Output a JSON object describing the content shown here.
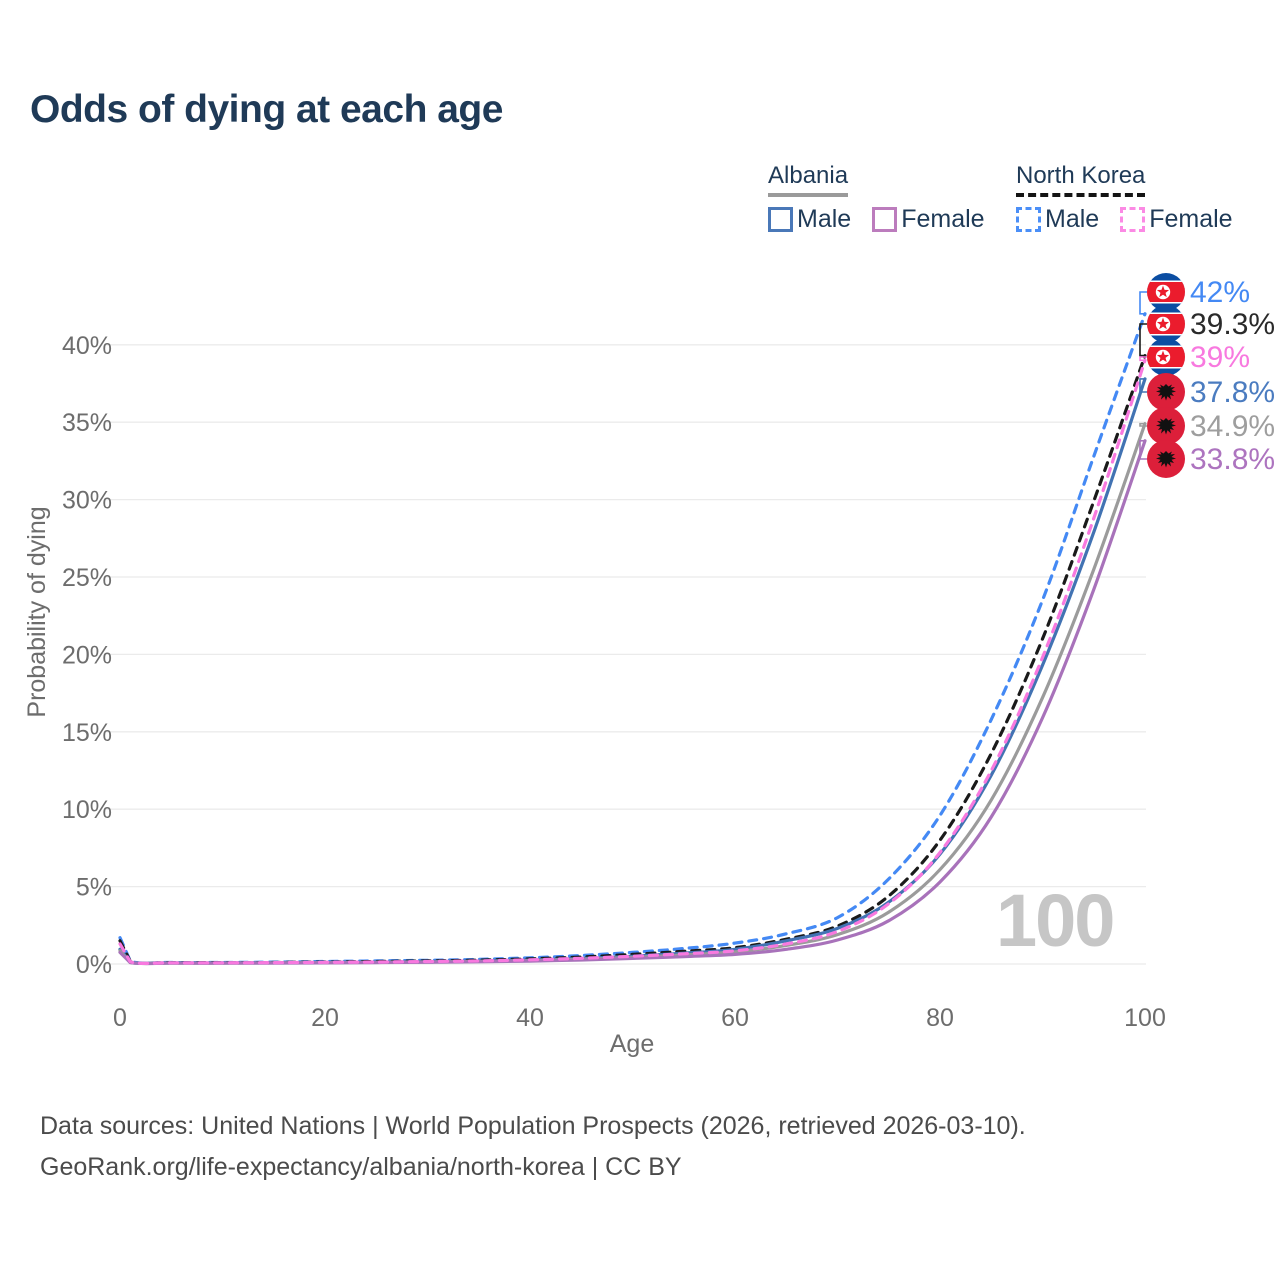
{
  "legend": {
    "groups": [
      {
        "title": "Albania",
        "line_style": "solid",
        "underline_color": "#9a9a9a",
        "items": [
          {
            "label": "Male",
            "color": "#4a78b8"
          },
          {
            "label": "Female",
            "color": "#bc7cbd"
          }
        ]
      },
      {
        "title": "North Korea",
        "line_style": "dashed",
        "underline_color": "#141414",
        "items": [
          {
            "label": "Male",
            "color": "#4b8ff7"
          },
          {
            "label": "Female",
            "color": "#fb8ae4"
          }
        ]
      }
    ]
  },
  "chart_data": {
    "type": "line",
    "title": "Odds of dying at each age",
    "xlabel": "Age",
    "ylabel": "Probability of dying",
    "xlim": [
      0,
      100
    ],
    "ylim_pct": [
      0,
      43
    ],
    "x_ticks": [
      "0",
      "20",
      "40",
      "60",
      "80",
      "100"
    ],
    "x_tick_values": [
      0,
      20,
      40,
      60,
      80,
      100
    ],
    "y_ticks": [
      "0%",
      "5%",
      "10%",
      "15%",
      "20%",
      "25%",
      "30%",
      "35%",
      "40%"
    ],
    "y_tick_values": [
      0,
      5,
      10,
      15,
      20,
      25,
      30,
      35,
      40
    ],
    "grid": "horizontal",
    "legend_position": "top-right",
    "watermark": "100",
    "x": [
      0,
      1,
      5,
      10,
      15,
      20,
      25,
      30,
      35,
      40,
      45,
      50,
      55,
      60,
      65,
      70,
      75,
      80,
      85,
      90,
      95,
      100
    ],
    "series": [
      {
        "name": "North Korea Male",
        "country": "north-korea",
        "sex": "male",
        "style": "dashed",
        "color": "#4489f4",
        "end_label": "42%",
        "label_color": "#4489f4",
        "flag": "north-korea",
        "values": [
          1.7,
          0.2,
          0.1,
          0.1,
          0.12,
          0.16,
          0.2,
          0.24,
          0.3,
          0.4,
          0.55,
          0.75,
          1.0,
          1.35,
          1.95,
          3.0,
          5.5,
          9.6,
          15.8,
          23.5,
          32.8,
          42.0
        ]
      },
      {
        "name": "North Korea Total",
        "country": "north-korea",
        "sex": "total",
        "style": "dashed",
        "color": "#1a1a1a",
        "end_label": "39.3%",
        "label_color": "#2a2a2a",
        "flag": "north-korea",
        "values": [
          1.5,
          0.17,
          0.09,
          0.09,
          0.1,
          0.13,
          0.16,
          0.2,
          0.25,
          0.33,
          0.45,
          0.62,
          0.82,
          1.05,
          1.6,
          2.45,
          4.4,
          8.0,
          13.6,
          21.0,
          29.9,
          39.3
        ]
      },
      {
        "name": "North Korea Female",
        "country": "north-korea",
        "sex": "female",
        "style": "dashed",
        "color": "#f879df",
        "end_label": "39%",
        "label_color": "#f879df",
        "flag": "north-korea",
        "values": [
          1.3,
          0.15,
          0.08,
          0.08,
          0.09,
          0.11,
          0.13,
          0.16,
          0.2,
          0.27,
          0.37,
          0.5,
          0.66,
          0.85,
          1.3,
          2.1,
          3.9,
          7.2,
          12.5,
          19.8,
          28.8,
          39.0
        ]
      },
      {
        "name": "Albania Male",
        "country": "albania",
        "sex": "male",
        "style": "solid",
        "color": "#4273b3",
        "end_label": "37.8%",
        "label_color": "#4b7cc0",
        "flag": "albania",
        "values": [
          0.95,
          0.12,
          0.07,
          0.07,
          0.08,
          0.1,
          0.12,
          0.15,
          0.19,
          0.25,
          0.35,
          0.5,
          0.7,
          0.95,
          1.5,
          2.3,
          4.0,
          7.1,
          12.2,
          19.3,
          27.9,
          37.8
        ]
      },
      {
        "name": "Albania Total",
        "country": "albania",
        "sex": "total",
        "style": "solid",
        "color": "#9b9b9b",
        "end_label": "34.9%",
        "label_color": "#9e9e9e",
        "flag": "albania",
        "values": [
          0.85,
          0.1,
          0.06,
          0.06,
          0.07,
          0.09,
          0.11,
          0.13,
          0.17,
          0.22,
          0.31,
          0.43,
          0.58,
          0.78,
          1.2,
          1.9,
          3.35,
          6.1,
          10.6,
          17.2,
          25.5,
          34.9
        ]
      },
      {
        "name": "Albania Female",
        "country": "albania",
        "sex": "female",
        "style": "solid",
        "color": "#a872ba",
        "end_label": "33.8%",
        "label_color": "#ad74bf",
        "flag": "albania",
        "values": [
          0.75,
          0.09,
          0.05,
          0.05,
          0.06,
          0.07,
          0.09,
          0.11,
          0.14,
          0.19,
          0.26,
          0.36,
          0.48,
          0.62,
          0.95,
          1.55,
          2.8,
          5.3,
          9.5,
          15.9,
          24.2,
          33.8
        ]
      }
    ],
    "flag_colors": {
      "north_korea_blue": "#0b4da2",
      "north_korea_red": "#eb1c2d",
      "albania_red": "#dc1f3a",
      "albania_eagle": "#111111"
    }
  },
  "footer": {
    "line1": "Data sources: United Nations | World Population Prospects (2026, retrieved 2026-03-10).",
    "line2": "GeoRank.org/life-expectancy/albania/north-korea | CC BY"
  }
}
